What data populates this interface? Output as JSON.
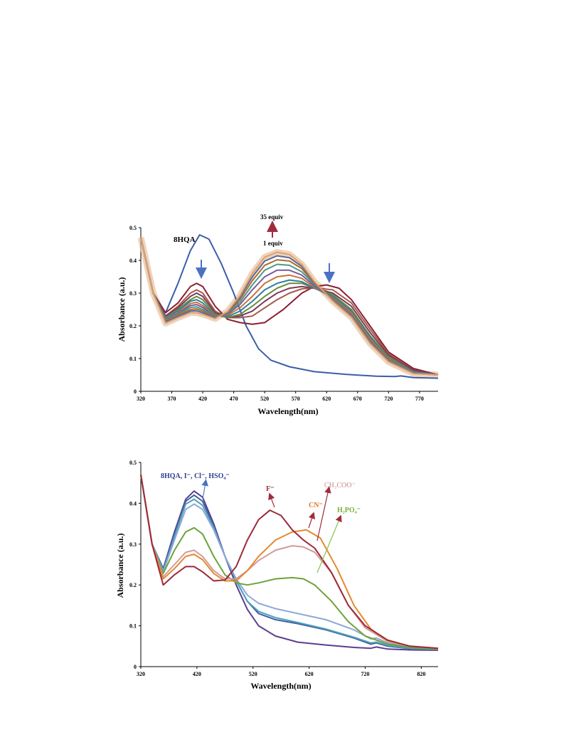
{
  "chart_data": [
    {
      "type": "line",
      "xlabel": "Wavelength(nm)",
      "ylabel": "Absorbance  (a.u.)",
      "xlim": [
        320,
        800
      ],
      "ylim": [
        0,
        0.5
      ],
      "x_ticks": [
        320,
        370,
        420,
        470,
        520,
        570,
        620,
        670,
        720,
        770
      ],
      "y_ticks": [
        0,
        0.1,
        0.2,
        0.3,
        0.4,
        0.5
      ],
      "grid": false,
      "annotations": {
        "top": "35 equiv",
        "bottom": "1 equiv",
        "series_label": "8HQA"
      },
      "series": [
        {
          "name": "8HQA",
          "color": "#3b5ea8",
          "x": [
            320,
            340,
            360,
            380,
            400,
            415,
            430,
            450,
            470,
            490,
            510,
            530,
            560,
            600,
            650,
            700,
            730,
            740,
            760,
            800
          ],
          "y": [
            0.47,
            0.3,
            0.24,
            0.33,
            0.43,
            0.478,
            0.465,
            0.39,
            0.3,
            0.2,
            0.13,
            0.095,
            0.075,
            0.06,
            0.052,
            0.046,
            0.045,
            0.047,
            0.042,
            0.04
          ]
        },
        {
          "name": "",
          "color": "#8b2030",
          "x": [
            320,
            340,
            360,
            380,
            400,
            410,
            420,
            440,
            460,
            480,
            500,
            520,
            550,
            580,
            600,
            620,
            640,
            660,
            690,
            720,
            760,
            800
          ],
          "y": [
            0.47,
            0.3,
            0.24,
            0.27,
            0.32,
            0.33,
            0.32,
            0.26,
            0.22,
            0.21,
            0.205,
            0.21,
            0.25,
            0.3,
            0.32,
            0.325,
            0.315,
            0.28,
            0.2,
            0.12,
            0.07,
            0.05
          ]
        },
        {
          "name": "",
          "color": "#a55a4a",
          "x": [
            320,
            340,
            360,
            380,
            400,
            410,
            420,
            440,
            460,
            480,
            500,
            520,
            540,
            560,
            580,
            600,
            630,
            660,
            690,
            720,
            760,
            800
          ],
          "y": [
            0.47,
            0.3,
            0.23,
            0.26,
            0.3,
            0.31,
            0.3,
            0.245,
            0.225,
            0.225,
            0.23,
            0.255,
            0.28,
            0.3,
            0.313,
            0.316,
            0.31,
            0.27,
            0.19,
            0.115,
            0.065,
            0.05
          ]
        },
        {
          "name": "",
          "color": "#7a3a5a",
          "x": [
            320,
            340,
            360,
            380,
            400,
            410,
            420,
            440,
            460,
            480,
            500,
            520,
            540,
            560,
            580,
            600,
            630,
            660,
            690,
            720,
            760,
            800
          ],
          "y": [
            0.47,
            0.3,
            0.23,
            0.255,
            0.29,
            0.3,
            0.29,
            0.24,
            0.225,
            0.23,
            0.245,
            0.275,
            0.3,
            0.315,
            0.32,
            0.315,
            0.3,
            0.26,
            0.18,
            0.11,
            0.065,
            0.05
          ]
        },
        {
          "name": "",
          "color": "#6a8a3a",
          "x": [
            320,
            340,
            360,
            380,
            400,
            410,
            420,
            440,
            460,
            480,
            500,
            520,
            540,
            560,
            580,
            600,
            630,
            660,
            690,
            720,
            760,
            800
          ],
          "y": [
            0.47,
            0.3,
            0.225,
            0.25,
            0.28,
            0.29,
            0.28,
            0.235,
            0.225,
            0.235,
            0.26,
            0.29,
            0.315,
            0.33,
            0.33,
            0.315,
            0.295,
            0.25,
            0.17,
            0.105,
            0.06,
            0.05
          ]
        },
        {
          "name": "",
          "color": "#2f7fa0",
          "x": [
            320,
            340,
            360,
            380,
            400,
            410,
            420,
            440,
            460,
            480,
            500,
            520,
            540,
            560,
            580,
            600,
            630,
            660,
            690,
            720,
            760,
            800
          ],
          "y": [
            0.47,
            0.3,
            0.225,
            0.245,
            0.275,
            0.28,
            0.27,
            0.232,
            0.228,
            0.245,
            0.275,
            0.31,
            0.33,
            0.34,
            0.335,
            0.315,
            0.29,
            0.245,
            0.165,
            0.1,
            0.06,
            0.05
          ]
        },
        {
          "name": "",
          "color": "#c9713a",
          "x": [
            320,
            340,
            360,
            380,
            400,
            410,
            420,
            440,
            460,
            480,
            500,
            520,
            540,
            560,
            580,
            600,
            630,
            660,
            690,
            720,
            760,
            800
          ],
          "y": [
            0.47,
            0.3,
            0.222,
            0.24,
            0.268,
            0.272,
            0.262,
            0.23,
            0.232,
            0.255,
            0.29,
            0.33,
            0.35,
            0.355,
            0.345,
            0.318,
            0.285,
            0.24,
            0.16,
            0.098,
            0.058,
            0.05
          ]
        },
        {
          "name": "",
          "color": "#7a5a9a",
          "x": [
            320,
            340,
            360,
            380,
            400,
            410,
            420,
            440,
            460,
            480,
            500,
            520,
            540,
            560,
            580,
            600,
            630,
            660,
            690,
            720,
            760,
            800
          ],
          "y": [
            0.47,
            0.3,
            0.22,
            0.238,
            0.262,
            0.265,
            0.256,
            0.228,
            0.235,
            0.265,
            0.31,
            0.35,
            0.37,
            0.37,
            0.355,
            0.322,
            0.282,
            0.235,
            0.155,
            0.095,
            0.057,
            0.05
          ]
        },
        {
          "name": "",
          "color": "#4a9a8a",
          "x": [
            320,
            340,
            360,
            380,
            400,
            410,
            420,
            440,
            460,
            480,
            500,
            520,
            540,
            560,
            580,
            600,
            630,
            660,
            690,
            720,
            760,
            800
          ],
          "y": [
            0.47,
            0.3,
            0.218,
            0.235,
            0.256,
            0.258,
            0.25,
            0.226,
            0.238,
            0.272,
            0.325,
            0.37,
            0.388,
            0.385,
            0.365,
            0.326,
            0.28,
            0.232,
            0.152,
            0.093,
            0.056,
            0.05
          ]
        },
        {
          "name": "",
          "color": "#b06a2a",
          "x": [
            320,
            340,
            360,
            380,
            400,
            410,
            420,
            440,
            460,
            480,
            500,
            520,
            540,
            560,
            580,
            600,
            630,
            660,
            690,
            720,
            760,
            800
          ],
          "y": [
            0.47,
            0.3,
            0.215,
            0.232,
            0.25,
            0.252,
            0.245,
            0.225,
            0.24,
            0.28,
            0.338,
            0.385,
            0.402,
            0.398,
            0.375,
            0.33,
            0.278,
            0.23,
            0.15,
            0.092,
            0.055,
            0.05
          ]
        },
        {
          "name": "",
          "color": "#5a6aa0",
          "x": [
            320,
            340,
            360,
            380,
            400,
            410,
            420,
            440,
            460,
            480,
            500,
            520,
            540,
            560,
            580,
            600,
            630,
            660,
            690,
            720,
            760,
            800
          ],
          "y": [
            0.47,
            0.3,
            0.212,
            0.228,
            0.245,
            0.246,
            0.24,
            0.224,
            0.242,
            0.287,
            0.35,
            0.398,
            0.414,
            0.408,
            0.382,
            0.333,
            0.276,
            0.228,
            0.148,
            0.091,
            0.055,
            0.05
          ]
        },
        {
          "name": "",
          "color": "#e0a070",
          "x": [
            320,
            340,
            360,
            380,
            400,
            410,
            420,
            440,
            460,
            480,
            500,
            520,
            540,
            560,
            580,
            600,
            630,
            660,
            690,
            720,
            760,
            800
          ],
          "y": [
            0.47,
            0.3,
            0.208,
            0.225,
            0.24,
            0.24,
            0.235,
            0.222,
            0.244,
            0.292,
            0.36,
            0.41,
            0.425,
            0.418,
            0.388,
            0.336,
            0.275,
            0.226,
            0.146,
            0.09,
            0.054,
            0.05
          ]
        }
      ]
    },
    {
      "type": "line",
      "xlabel": "Wavelength(nm)",
      "ylabel": "Absorbance (a.u.)",
      "xlim": [
        320,
        850
      ],
      "ylim": [
        0,
        0.5
      ],
      "x_ticks": [
        320,
        420,
        520,
        620,
        720,
        820
      ],
      "y_ticks": [
        0,
        0.1,
        0.2,
        0.3,
        0.4,
        0.5
      ],
      "grid": false,
      "annotations": {
        "group": "8HQA, I⁻, Cl⁻, HSO₄⁻",
        "f": "F⁻",
        "acetate": "CH₃COO⁻",
        "cn": "CN⁻",
        "phosphate": "H₂PO₄⁻"
      },
      "series": [
        {
          "name": "8HQA",
          "color": "#5b3f8f",
          "x": [
            320,
            340,
            360,
            380,
            400,
            415,
            430,
            450,
            470,
            490,
            510,
            530,
            560,
            600,
            650,
            700,
            730,
            740,
            760,
            800,
            850
          ],
          "y": [
            0.47,
            0.3,
            0.24,
            0.33,
            0.41,
            0.43,
            0.415,
            0.35,
            0.27,
            0.2,
            0.14,
            0.1,
            0.075,
            0.06,
            0.053,
            0.047,
            0.045,
            0.048,
            0.043,
            0.041,
            0.04
          ]
        },
        {
          "name": "I⁻",
          "color": "#3e5fa3",
          "x": [
            320,
            340,
            360,
            380,
            400,
            415,
            430,
            450,
            470,
            490,
            510,
            530,
            560,
            600,
            650,
            700,
            730,
            740,
            760,
            800,
            850
          ],
          "y": [
            0.47,
            0.3,
            0.238,
            0.325,
            0.405,
            0.42,
            0.405,
            0.345,
            0.27,
            0.21,
            0.16,
            0.13,
            0.115,
            0.105,
            0.09,
            0.07,
            0.055,
            0.058,
            0.05,
            0.044,
            0.042
          ]
        },
        {
          "name": "Cl⁻",
          "color": "#4fa0b8",
          "x": [
            320,
            340,
            360,
            380,
            400,
            415,
            430,
            450,
            470,
            490,
            510,
            530,
            560,
            600,
            650,
            700,
            730,
            740,
            760,
            800,
            850
          ],
          "y": [
            0.47,
            0.3,
            0.235,
            0.318,
            0.398,
            0.41,
            0.395,
            0.34,
            0.27,
            0.21,
            0.16,
            0.135,
            0.12,
            0.108,
            0.092,
            0.072,
            0.058,
            0.06,
            0.052,
            0.045,
            0.042
          ]
        },
        {
          "name": "HSO₄⁻",
          "color": "#8fa8d8",
          "x": [
            320,
            340,
            360,
            380,
            400,
            415,
            430,
            450,
            470,
            490,
            510,
            530,
            560,
            600,
            650,
            700,
            730,
            740,
            760,
            800,
            850
          ],
          "y": [
            0.47,
            0.3,
            0.232,
            0.31,
            0.385,
            0.398,
            0.385,
            0.335,
            0.27,
            0.215,
            0.175,
            0.155,
            0.142,
            0.13,
            0.115,
            0.09,
            0.068,
            0.07,
            0.058,
            0.048,
            0.043
          ]
        },
        {
          "name": "H₂PO₄⁻",
          "color": "#6da23a",
          "x": [
            320,
            340,
            360,
            380,
            400,
            415,
            430,
            450,
            470,
            490,
            510,
            530,
            560,
            590,
            610,
            630,
            660,
            690,
            720,
            760,
            800,
            850
          ],
          "y": [
            0.47,
            0.3,
            0.228,
            0.285,
            0.33,
            0.34,
            0.325,
            0.27,
            0.225,
            0.205,
            0.2,
            0.205,
            0.215,
            0.218,
            0.215,
            0.2,
            0.16,
            0.11,
            0.075,
            0.055,
            0.047,
            0.043
          ]
        },
        {
          "name": "CH₃COO⁻",
          "color": "#d49a9a",
          "x": [
            320,
            340,
            360,
            380,
            400,
            415,
            430,
            450,
            470,
            490,
            510,
            530,
            560,
            590,
            610,
            630,
            660,
            690,
            720,
            760,
            800,
            850
          ],
          "y": [
            0.47,
            0.3,
            0.22,
            0.25,
            0.28,
            0.285,
            0.27,
            0.235,
            0.215,
            0.215,
            0.235,
            0.26,
            0.285,
            0.296,
            0.293,
            0.28,
            0.23,
            0.15,
            0.095,
            0.062,
            0.05,
            0.045
          ]
        },
        {
          "name": "CN⁻",
          "color": "#e38a2f",
          "x": [
            320,
            340,
            360,
            380,
            400,
            415,
            430,
            450,
            470,
            490,
            510,
            530,
            560,
            590,
            615,
            640,
            670,
            700,
            730,
            760,
            800,
            850
          ],
          "y": [
            0.47,
            0.3,
            0.215,
            0.24,
            0.27,
            0.275,
            0.262,
            0.228,
            0.21,
            0.21,
            0.235,
            0.27,
            0.31,
            0.33,
            0.335,
            0.315,
            0.24,
            0.15,
            0.092,
            0.063,
            0.05,
            0.045
          ]
        },
        {
          "name": "F⁻",
          "color": "#9c2a3c",
          "x": [
            320,
            340,
            360,
            380,
            400,
            415,
            430,
            450,
            470,
            490,
            510,
            530,
            550,
            570,
            590,
            610,
            630,
            660,
            690,
            720,
            760,
            800,
            850
          ],
          "y": [
            0.47,
            0.3,
            0.2,
            0.225,
            0.245,
            0.245,
            0.232,
            0.21,
            0.212,
            0.245,
            0.31,
            0.36,
            0.383,
            0.37,
            0.335,
            0.31,
            0.29,
            0.23,
            0.15,
            0.1,
            0.065,
            0.05,
            0.045
          ]
        }
      ]
    }
  ]
}
